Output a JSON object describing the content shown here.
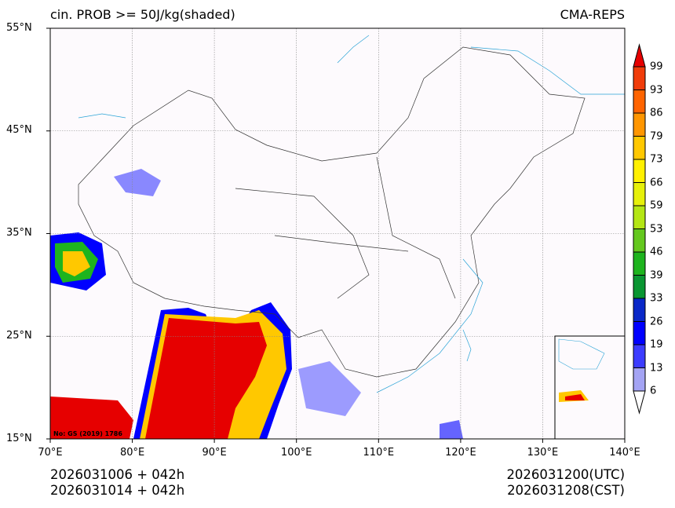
{
  "header": {
    "title_left": "cin. PROB >= 50J/kg(shaded)",
    "title_right": "CMA-REPS"
  },
  "footer": {
    "init_utc": "2026031006  +  042h",
    "init_cst": "2026031014  +  042h",
    "valid_utc": "2026031200(UTC)",
    "valid_cst": "2026031208(CST)"
  },
  "watermark": "No: GS (2019) 1786",
  "chart_data": {
    "type": "heatmap",
    "title": "cin. PROB >= 50J/kg(shaded)",
    "source": "CMA-REPS",
    "x_ticks": [
      "70°E",
      "80°E",
      "90°E",
      "100°E",
      "110°E",
      "120°E",
      "130°E",
      "140°E"
    ],
    "y_ticks": [
      "55°N",
      "45°N",
      "35°N",
      "25°N",
      "15°N"
    ],
    "xlim": [
      70,
      140
    ],
    "ylim": [
      15,
      55
    ],
    "grid": true,
    "colorbar": {
      "levels": [
        "6",
        "13",
        "19",
        "26",
        "33",
        "39",
        "46",
        "53",
        "59",
        "66",
        "73",
        "79",
        "86",
        "93",
        "99"
      ],
      "colors": [
        "#a4a4f4",
        "#3c3cff",
        "#0000ff",
        "#0a28c8",
        "#0a9632",
        "#1eb41e",
        "#64c81e",
        "#b4e614",
        "#e6f00a",
        "#fff000",
        "#ffc800",
        "#ff9600",
        "#ff6400",
        "#f03c0a",
        "#e60000"
      ],
      "extend": "both",
      "placement": "right"
    }
  }
}
